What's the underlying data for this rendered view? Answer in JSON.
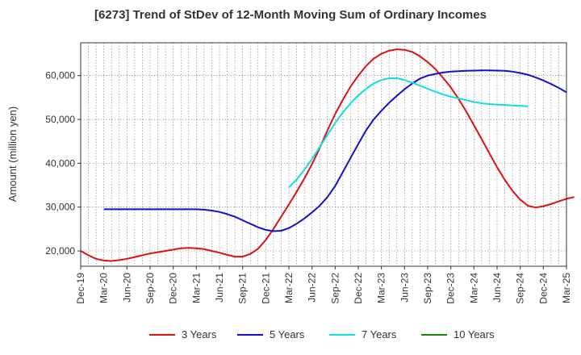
{
  "chart_data": {
    "type": "line",
    "title": "[6273]  Trend of StDev of 12-Month Moving Sum of Ordinary Incomes",
    "ylabel": "Amount (million yen)",
    "xlabel": "",
    "ylim": [
      16500,
      67500
    ],
    "yticks": [
      20000,
      30000,
      40000,
      50000,
      60000
    ],
    "ytick_labels": [
      "20,000",
      "30,000",
      "40,000",
      "50,000",
      "60,000"
    ],
    "xtick_labels": [
      "Dec-19",
      "Mar-20",
      "Jun-20",
      "Sep-20",
      "Dec-20",
      "Mar-21",
      "Jun-21",
      "Sep-21",
      "Dec-21",
      "Mar-22",
      "Jun-22",
      "Sep-22",
      "Dec-22",
      "Mar-23",
      "Jun-23",
      "Sep-23",
      "Dec-23",
      "Mar-24",
      "Jun-24",
      "Sep-24",
      "Dec-24",
      "Mar-25"
    ],
    "grid": true,
    "legend_position": "bottom",
    "series": [
      {
        "name": "3 Years",
        "color": "#dd1111",
        "start_index": 0,
        "values": [
          20000,
          19000,
          18200,
          17800,
          17700,
          17900,
          18200,
          18600,
          19000,
          19400,
          19700,
          20000,
          20300,
          20600,
          20700,
          20600,
          20400,
          20000,
          19600,
          19100,
          18700,
          18700,
          19300,
          20500,
          22500,
          25000,
          27800,
          30600,
          33500,
          36500,
          39800,
          43500,
          47500,
          51200,
          54500,
          57500,
          60000,
          62200,
          63900,
          65000,
          65700,
          66000,
          65900,
          65400,
          64400,
          63100,
          61500,
          59500,
          57300,
          54700,
          51800,
          48700,
          45500,
          42300,
          39100,
          36200,
          33700,
          31700,
          30300,
          29900,
          30200,
          30700,
          31300,
          31900,
          32300
        ]
      },
      {
        "name": "5 Years",
        "color": "#1111cc",
        "start_index": 3,
        "values": [
          29500,
          29500,
          29500,
          29500,
          29500,
          29500,
          29500,
          29500,
          29500,
          29500,
          29500,
          29500,
          29500,
          29400,
          29200,
          28900,
          28400,
          27800,
          27000,
          26200,
          25400,
          24800,
          24500,
          24600,
          25200,
          26200,
          27400,
          28800,
          30300,
          32300,
          34800,
          38000,
          41200,
          44400,
          47500,
          50000,
          52000,
          53800,
          55400,
          56900,
          58200,
          59300,
          60000,
          60400,
          60700,
          60900,
          61000,
          61100,
          61150,
          61200,
          61200,
          61150,
          61100,
          60900,
          60600,
          60200,
          59600,
          58900,
          58100,
          57200,
          56200
        ]
      },
      {
        "name": "7 Years",
        "color": "#11dddd",
        "start_index": 27,
        "values": [
          34500,
          36300,
          38500,
          41000,
          43700,
          46500,
          49200,
          51600,
          53700,
          55500,
          57000,
          58200,
          59000,
          59400,
          59400,
          59000,
          58400,
          57700,
          57000,
          56300,
          55700,
          55200,
          54800,
          54400,
          54000,
          53700,
          53500,
          53400,
          53300,
          53200,
          53100,
          53000
        ]
      },
      {
        "name": "10 Years",
        "color": "#118811",
        "start_index": 0,
        "values": []
      }
    ]
  }
}
